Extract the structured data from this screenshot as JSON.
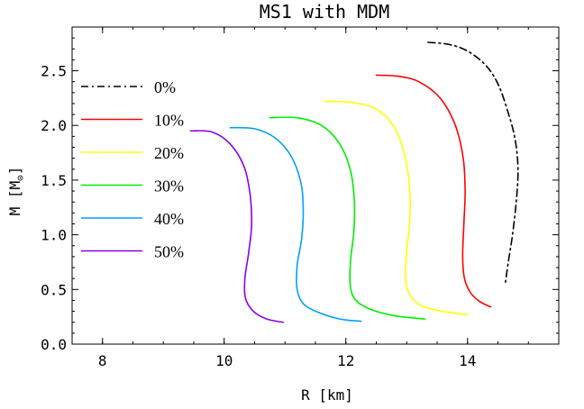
{
  "chart_data": {
    "type": "line",
    "title": "MS1 with MDM",
    "xlabel": "R [km]",
    "ylabel_main": "M [M",
    "ylabel_sub": "⊙",
    "ylabel_close": "]",
    "xlim": [
      7.5,
      15.5
    ],
    "ylim": [
      0.0,
      2.9
    ],
    "xticks": [
      8,
      10,
      12,
      14
    ],
    "yticks": [
      0.0,
      0.5,
      1.0,
      1.5,
      2.0,
      2.5
    ],
    "xtick_labels": [
      "8",
      "10",
      "12",
      "14"
    ],
    "ytick_labels": [
      "0.0",
      "0.5",
      "1.0",
      "1.5",
      "2.0",
      "2.5"
    ],
    "grid": false,
    "legend_position": "left",
    "series": [
      {
        "name": "0%",
        "color": "#000000",
        "dash": "dashdot",
        "points": [
          [
            13.35,
            2.76
          ],
          [
            13.7,
            2.74
          ],
          [
            14.0,
            2.68
          ],
          [
            14.3,
            2.55
          ],
          [
            14.5,
            2.38
          ],
          [
            14.65,
            2.15
          ],
          [
            14.78,
            1.88
          ],
          [
            14.83,
            1.6
          ],
          [
            14.8,
            1.3
          ],
          [
            14.74,
            1.0
          ],
          [
            14.67,
            0.75
          ],
          [
            14.62,
            0.55
          ]
        ]
      },
      {
        "name": "10%",
        "color": "#ff0000",
        "dash": "solid",
        "points": [
          [
            12.5,
            2.46
          ],
          [
            12.85,
            2.45
          ],
          [
            13.2,
            2.4
          ],
          [
            13.55,
            2.25
          ],
          [
            13.8,
            2.0
          ],
          [
            13.93,
            1.7
          ],
          [
            13.96,
            1.4
          ],
          [
            13.94,
            1.1
          ],
          [
            13.92,
            0.8
          ],
          [
            13.95,
            0.6
          ],
          [
            14.05,
            0.47
          ],
          [
            14.2,
            0.39
          ],
          [
            14.38,
            0.34
          ]
        ]
      },
      {
        "name": "20%",
        "color": "#ffff00",
        "dash": "solid",
        "points": [
          [
            11.65,
            2.22
          ],
          [
            12.1,
            2.21
          ],
          [
            12.5,
            2.15
          ],
          [
            12.8,
            1.98
          ],
          [
            12.97,
            1.72
          ],
          [
            13.05,
            1.42
          ],
          [
            13.05,
            1.12
          ],
          [
            13.0,
            0.85
          ],
          [
            12.98,
            0.6
          ],
          [
            13.05,
            0.45
          ],
          [
            13.25,
            0.35
          ],
          [
            13.6,
            0.3
          ],
          [
            14.0,
            0.27
          ]
        ]
      },
      {
        "name": "30%",
        "color": "#00ee00",
        "dash": "solid",
        "points": [
          [
            10.75,
            2.07
          ],
          [
            11.2,
            2.07
          ],
          [
            11.6,
            2.0
          ],
          [
            11.9,
            1.83
          ],
          [
            12.08,
            1.58
          ],
          [
            12.14,
            1.3
          ],
          [
            12.13,
            1.02
          ],
          [
            12.08,
            0.78
          ],
          [
            12.07,
            0.55
          ],
          [
            12.15,
            0.41
          ],
          [
            12.4,
            0.32
          ],
          [
            12.8,
            0.26
          ],
          [
            13.3,
            0.23
          ]
        ]
      },
      {
        "name": "40%",
        "color": "#00a0ff",
        "dash": "solid",
        "points": [
          [
            10.1,
            1.98
          ],
          [
            10.5,
            1.97
          ],
          [
            10.85,
            1.88
          ],
          [
            11.12,
            1.7
          ],
          [
            11.27,
            1.45
          ],
          [
            11.3,
            1.2
          ],
          [
            11.27,
            0.95
          ],
          [
            11.2,
            0.72
          ],
          [
            11.2,
            0.5
          ],
          [
            11.3,
            0.37
          ],
          [
            11.55,
            0.29
          ],
          [
            11.9,
            0.23
          ],
          [
            12.25,
            0.21
          ]
        ]
      },
      {
        "name": "50%",
        "color": "#8800ee",
        "dash": "solid",
        "points": [
          [
            9.45,
            1.95
          ],
          [
            9.8,
            1.94
          ],
          [
            10.1,
            1.83
          ],
          [
            10.33,
            1.62
          ],
          [
            10.43,
            1.35
          ],
          [
            10.45,
            1.08
          ],
          [
            10.4,
            0.83
          ],
          [
            10.34,
            0.6
          ],
          [
            10.35,
            0.42
          ],
          [
            10.48,
            0.3
          ],
          [
            10.7,
            0.23
          ],
          [
            10.97,
            0.2
          ]
        ]
      }
    ]
  }
}
